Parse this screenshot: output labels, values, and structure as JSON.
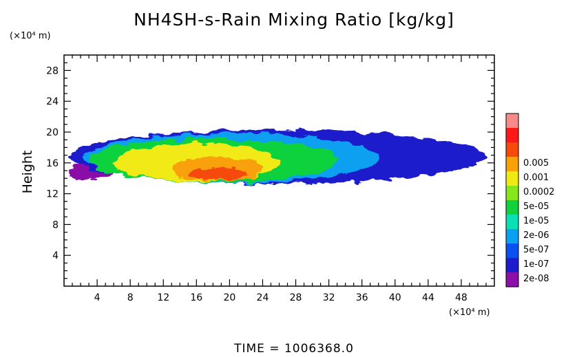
{
  "chart_data": {
    "type": "heatmap",
    "title": "NH4SH-s-Rain Mixing Ratio [kg/kg]",
    "ylabel": "Height",
    "xlabel": "",
    "x_unit": "(×10⁴ m)",
    "y_unit": "(×10⁴ m)",
    "xlim": [
      0,
      52
    ],
    "ylim": [
      0,
      30
    ],
    "x_ticks": [
      4,
      8,
      12,
      16,
      20,
      24,
      28,
      32,
      36,
      40,
      44,
      48
    ],
    "y_ticks": [
      4,
      8,
      12,
      16,
      20,
      24,
      28
    ],
    "grid": false,
    "colorbar": {
      "placement": "right",
      "levels": [
        "2e-08",
        "1e-07",
        "5e-07",
        "2e-06",
        "1e-05",
        "5e-05",
        "0.0002",
        "0.001",
        "0.005"
      ],
      "colors": [
        "#8b0fa8",
        "#1c1ccd",
        "#0a4ff0",
        "#0ba0f0",
        "#0ae0b4",
        "#11d23c",
        "#86e81a",
        "#f1ea12",
        "#f8a108",
        "#f64a0c",
        "#ff1818",
        "#f98a8a"
      ]
    },
    "regions": [
      {
        "level": 0,
        "x": [
          0.3,
          6
        ],
        "y": [
          13.8,
          15.8
        ]
      },
      {
        "level": 1,
        "x": [
          0.5,
          51
        ],
        "y": [
          13.3,
          20.3
        ]
      },
      {
        "level": 1,
        "x": [
          37,
          45
        ],
        "y": [
          14.0,
          18.6
        ]
      },
      {
        "level": 3,
        "x": [
          2.5,
          38
        ],
        "y": [
          13.4,
          19.8
        ]
      },
      {
        "level": 5,
        "x": [
          3,
          33
        ],
        "y": [
          13.5,
          19.2
        ]
      },
      {
        "level": 7,
        "x": [
          6,
          26
        ],
        "y": [
          13.6,
          18.5
        ]
      },
      {
        "level": 8,
        "x": [
          13,
          24
        ],
        "y": [
          13.7,
          16.8
        ]
      },
      {
        "level": 9,
        "x": [
          15,
          22
        ],
        "y": [
          13.8,
          15.4
        ]
      }
    ],
    "caption": "TIME = 1006368.0"
  }
}
